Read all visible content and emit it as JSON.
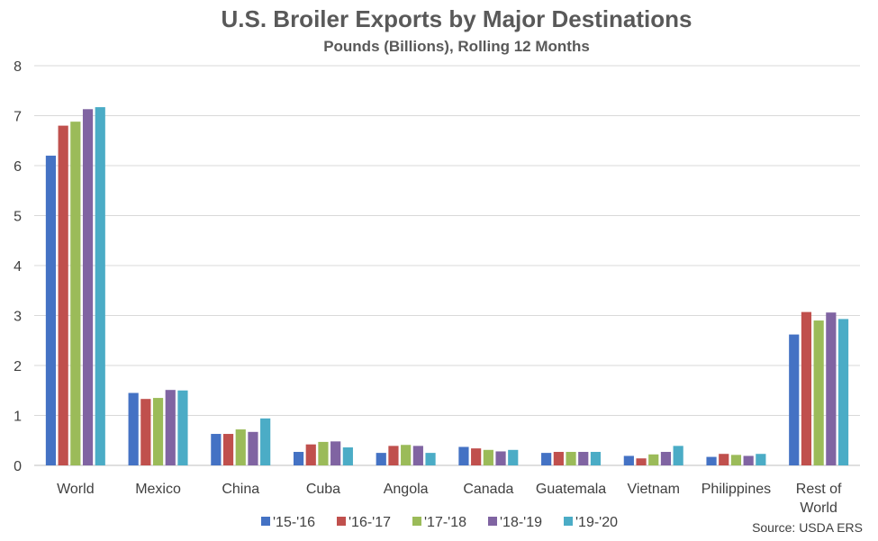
{
  "chart_data": {
    "type": "bar",
    "title": "U.S. Broiler Exports by Major Destinations",
    "subtitle": "Pounds (Billions), Rolling 12 Months",
    "xlabel": "",
    "ylabel": "",
    "ylim": [
      0,
      8
    ],
    "yticks": [
      "0",
      "1",
      "2",
      "3",
      "4",
      "5",
      "6",
      "7",
      "8"
    ],
    "grid": true,
    "legend_position": "bottom",
    "categories": [
      "World",
      "Mexico",
      "China",
      "Cuba",
      "Angola",
      "Canada",
      "Guatemala",
      "Vietnam",
      "Philippines",
      "Rest of World"
    ],
    "series": [
      {
        "name": "'15-'16",
        "color": "#4472C4",
        "values": [
          6.2,
          1.45,
          0.63,
          0.27,
          0.25,
          0.37,
          0.25,
          0.19,
          0.17,
          2.62
        ]
      },
      {
        "name": "'16-'17",
        "color": "#C0504D",
        "values": [
          6.8,
          1.33,
          0.63,
          0.42,
          0.39,
          0.34,
          0.27,
          0.14,
          0.23,
          3.07
        ]
      },
      {
        "name": "'17-'18",
        "color": "#9BBB59",
        "values": [
          6.88,
          1.35,
          0.72,
          0.47,
          0.41,
          0.31,
          0.27,
          0.22,
          0.21,
          2.9
        ]
      },
      {
        "name": "'18-'19",
        "color": "#8064A2",
        "values": [
          7.13,
          1.51,
          0.67,
          0.48,
          0.39,
          0.28,
          0.27,
          0.27,
          0.19,
          3.06
        ]
      },
      {
        "name": "'19-'20",
        "color": "#4BACC6",
        "values": [
          7.17,
          1.5,
          0.94,
          0.36,
          0.25,
          0.31,
          0.27,
          0.39,
          0.23,
          2.93
        ]
      }
    ],
    "source": "Source: USDA ERS"
  }
}
